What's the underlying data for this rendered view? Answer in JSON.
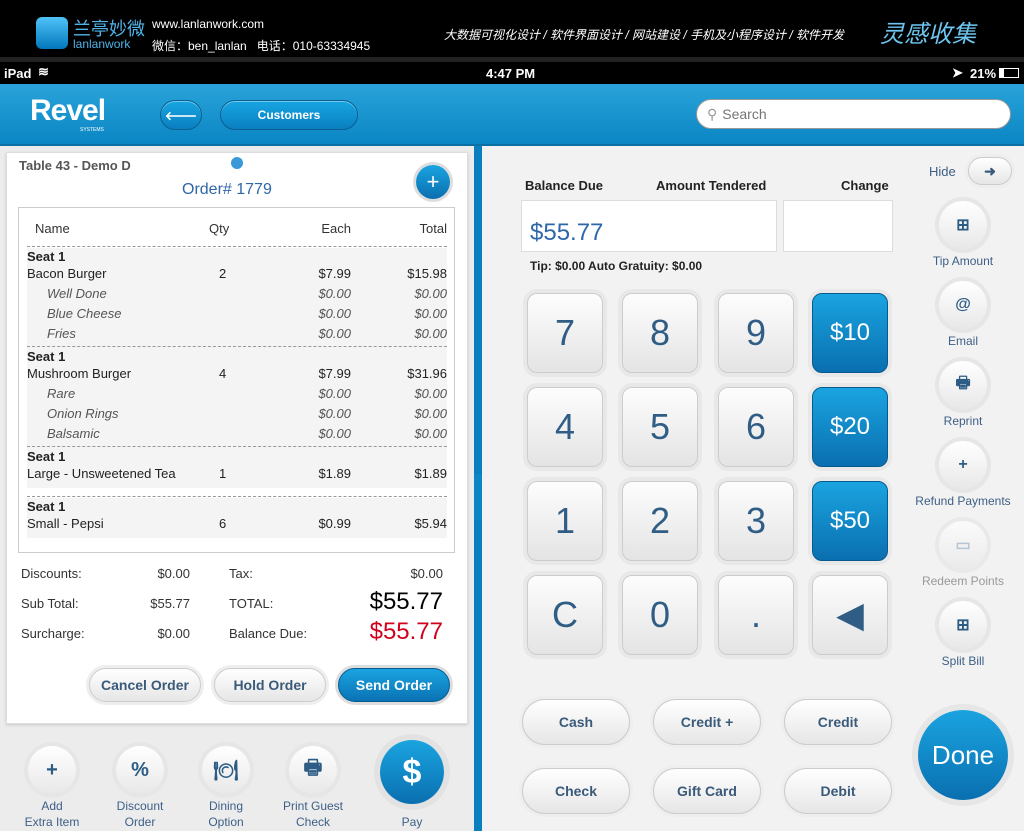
{
  "banner": {
    "logo_cn": "兰亭妙微",
    "logo_en": "lanlanwork",
    "url": "www.lanlanwork.com",
    "contact": "微信：ben_lanlan   电话：010-63334945",
    "services": "大数据可视化设计 / 软件界面设计 / 网站建设 / 手机及小程序设计 / 软件开发",
    "brand": "灵感收集"
  },
  "status": {
    "device": "iPad",
    "time": "4:47 PM",
    "battery": "21%"
  },
  "appbar": {
    "logo": "Revel",
    "logo_sub": "SYSTEMS",
    "customers": "Customers",
    "search_placeholder": "Search"
  },
  "order": {
    "table": "Table 43 - Demo D",
    "number": "Order# 1779",
    "headers": [
      "Name",
      "Qty",
      "Each",
      "Total"
    ],
    "groups": [
      {
        "seat": "Seat 1",
        "items": [
          {
            "name": "Bacon Burger",
            "qty": "2",
            "each": "$7.99",
            "total": "$15.98"
          },
          {
            "name": "Well Done",
            "each": "$0.00",
            "total": "$0.00",
            "mod": true
          },
          {
            "name": "Blue Cheese",
            "each": "$0.00",
            "total": "$0.00",
            "mod": true
          },
          {
            "name": "Fries",
            "each": "$0.00",
            "total": "$0.00",
            "mod": true
          }
        ]
      },
      {
        "seat": "Seat 1",
        "items": [
          {
            "name": "Mushroom Burger",
            "qty": "4",
            "each": "$7.99",
            "total": "$31.96"
          },
          {
            "name": "Rare",
            "each": "$0.00",
            "total": "$0.00",
            "mod": true
          },
          {
            "name": "Onion Rings",
            "each": "$0.00",
            "total": "$0.00",
            "mod": true
          },
          {
            "name": "Balsamic",
            "each": "$0.00",
            "total": "$0.00",
            "mod": true
          }
        ]
      },
      {
        "seat": "Seat 1",
        "items": [
          {
            "name": "Large - Unsweetened Tea",
            "qty": "1",
            "each": "$1.89",
            "total": "$1.89"
          }
        ]
      },
      {
        "seat": "Seat 1",
        "items": [
          {
            "name": "Small - Pepsi",
            "qty": "6",
            "each": "$0.99",
            "total": "$5.94"
          }
        ]
      }
    ],
    "summary": {
      "discounts_label": "Discounts:",
      "discounts": "$0.00",
      "tax_label": "Tax:",
      "tax": "$0.00",
      "subtotal_label": "Sub Total:",
      "subtotal": "$55.77",
      "total_label": "TOTAL:",
      "total": "$55.77",
      "surcharge_label": "Surcharge:",
      "surcharge": "$0.00",
      "balance_label": "Balance Due:",
      "balance": "$55.77"
    },
    "buttons": {
      "cancel": "Cancel Order",
      "hold": "Hold Order",
      "send": "Send Order"
    }
  },
  "actions": [
    {
      "label1": "Add",
      "label2": "Extra Item",
      "icon": "+"
    },
    {
      "label1": "Discount",
      "label2": "Order",
      "icon": "%"
    },
    {
      "label1": "Dining",
      "label2": "Option",
      "icon": "🍽"
    },
    {
      "label1": "Print Guest",
      "label2": "Check",
      "icon": "🖶"
    },
    {
      "label1": "Pay",
      "label2": "",
      "icon": "$"
    }
  ],
  "payment": {
    "balance_label": "Balance Due",
    "tendered_label": "Amount Tendered",
    "change_label": "Change",
    "tendered": "$55.77",
    "change": "",
    "tip_line": "Tip: $0.00 Auto Gratuity: $0.00",
    "keys": [
      "7",
      "8",
      "9",
      "$10",
      "4",
      "5",
      "6",
      "$20",
      "1",
      "2",
      "3",
      "$50",
      "C",
      "0",
      ".",
      "◀"
    ],
    "methods": [
      "Cash",
      "Credit +",
      "Credit",
      "Check",
      "Gift Card",
      "Debit"
    ],
    "done": "Done"
  },
  "side": {
    "hide": "Hide",
    "items": [
      {
        "label": "Tip Amount",
        "icon": "⊞"
      },
      {
        "label": "Email",
        "icon": "@"
      },
      {
        "label": "Reprint",
        "icon": "🖶"
      },
      {
        "label": "Refund Payments",
        "icon": "+"
      },
      {
        "label": "Redeem Points",
        "icon": "▭",
        "disabled": true
      },
      {
        "label": "Split Bill",
        "icon": "⊞"
      }
    ]
  },
  "colors": {
    "accent": "#0a86c4",
    "balance_red": "#d0021b"
  }
}
